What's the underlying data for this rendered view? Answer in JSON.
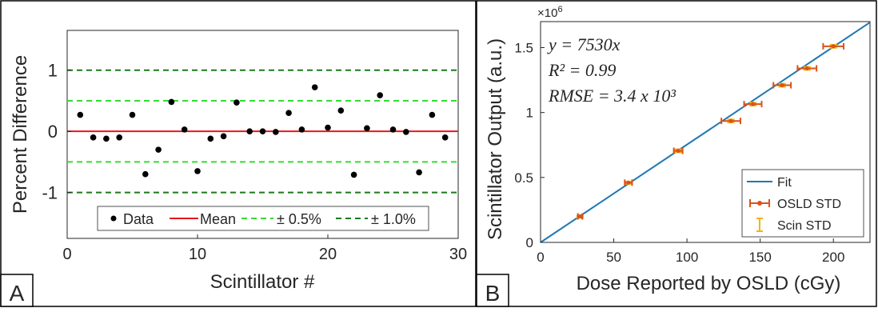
{
  "panels": {
    "a_label": "A",
    "b_label": "B"
  },
  "chart_data": [
    {
      "type": "scatter",
      "title": "",
      "xlabel": "Scintillator #",
      "ylabel": "Percent Difference",
      "xlim": [
        0,
        30
      ],
      "ylim": [
        -1.75,
        1.65
      ],
      "xticks": [
        0,
        10,
        20,
        30
      ],
      "xtick_labels": [
        "0",
        "10",
        "20",
        "30"
      ],
      "yticks": [
        -1,
        0,
        1
      ],
      "ytick_labels": [
        "-1",
        "0",
        "1"
      ],
      "grid": false,
      "legend_placement": "bottom-center",
      "legend_orientation": "horizontal",
      "legend": [
        "Data",
        "Mean",
        "± 0.5%",
        "± 1.0%"
      ],
      "colors": {
        "data": "#000000",
        "mean": "#e8171d",
        "half": "#33dd33",
        "one": "#1a7a1a"
      },
      "series": [
        {
          "name": "Data",
          "x": [
            1,
            2,
            3,
            4,
            5,
            6,
            7,
            8,
            9,
            10,
            11,
            12,
            13,
            14,
            15,
            16,
            17,
            18,
            19,
            20,
            21,
            22,
            23,
            24,
            25,
            26,
            27,
            28,
            29
          ],
          "y": [
            0.27,
            -0.1,
            -0.12,
            -0.1,
            0.27,
            -0.7,
            -0.3,
            0.48,
            0.03,
            -0.65,
            -0.12,
            -0.08,
            0.47,
            0.0,
            0.0,
            -0.01,
            0.3,
            0.03,
            0.72,
            0.06,
            0.34,
            -0.71,
            0.05,
            0.59,
            0.03,
            -0.01,
            -0.67,
            0.27,
            -0.1
          ]
        },
        {
          "name": "Mean",
          "y": 0
        },
        {
          "name": "± 0.5%",
          "y": [
            0.5,
            -0.5
          ]
        },
        {
          "name": "± 1.0%",
          "y": [
            1,
            -1
          ]
        }
      ]
    },
    {
      "type": "scatter",
      "title": "",
      "xlabel": "Dose Reported by OSLD (cGy)",
      "ylabel": "Scintillator Output (a.u.)",
      "exponent_label": "×10",
      "exponent_power": "6",
      "xlim": [
        0,
        225
      ],
      "ylim": [
        0,
        1.7
      ],
      "xticks": [
        0,
        50,
        100,
        150,
        200
      ],
      "xtick_labels": [
        "0",
        "50",
        "100",
        "150",
        "200"
      ],
      "yticks": [
        0,
        0.5,
        1,
        1.5
      ],
      "ytick_labels": [
        "0",
        "0.5",
        "1",
        "1.5"
      ],
      "grid": false,
      "legend_placement": "bottom-right",
      "legend": [
        "Fit",
        "OSLD STD",
        "Scin STD"
      ],
      "annotations": {
        "eq1": "y = 7530x",
        "eq2": "R² = 0.99",
        "eq3": "RMSE = 3.4 x 10³"
      },
      "colors": {
        "fit": "#1f77b4",
        "osld": "#d95319",
        "scin": "#f5b21a"
      },
      "fit": {
        "slope": 7530,
        "x": [
          0,
          225
        ]
      },
      "series": [
        {
          "name": "OSLD STD",
          "x": [
            27,
            60,
            94,
            130,
            145,
            165,
            182,
            200
          ],
          "y": [
            0.2,
            0.46,
            0.705,
            0.935,
            1.065,
            1.21,
            1.34,
            1.51
          ],
          "x_err": [
            1.5,
            2.5,
            3,
            6.5,
            6,
            6,
            6.5,
            7
          ]
        },
        {
          "name": "Scin STD",
          "x": [
            27,
            60,
            94,
            130,
            145,
            165,
            182,
            200
          ],
          "y": [
            0.2,
            0.46,
            0.705,
            0.935,
            1.065,
            1.21,
            1.34,
            1.51
          ],
          "y_err": [
            0.01,
            0.012,
            0.015,
            0.015,
            0.015,
            0.015,
            0.015,
            0.015
          ]
        }
      ]
    }
  ]
}
